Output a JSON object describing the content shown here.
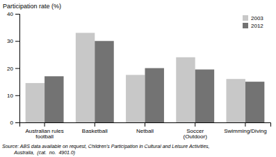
{
  "chart_data": {
    "type": "bar",
    "ylabel": "Participation rate (%)",
    "categories": [
      "Australian rules\nfootball",
      "Basketball",
      "Netball",
      "Soccer\n(Outdoor)",
      "Swimming/Diving"
    ],
    "series": [
      {
        "name": "2003",
        "color": "#c8c8c8",
        "values": [
          14.5,
          33.0,
          17.5,
          24.0,
          16.0
        ]
      },
      {
        "name": "2012",
        "color": "#737373",
        "values": [
          17.0,
          30.0,
          20.0,
          19.5,
          15.0
        ]
      }
    ],
    "ylim": [
      0,
      40
    ],
    "yticks": [
      0,
      10,
      20,
      30,
      40
    ],
    "grid": false,
    "legend": "upper right",
    "annotations": [
      "Source: ABS data available on request, Children's Participation in Cultural and Leisure Activities,",
      "         Australia,  (cat.  no.  4901.0)"
    ]
  }
}
